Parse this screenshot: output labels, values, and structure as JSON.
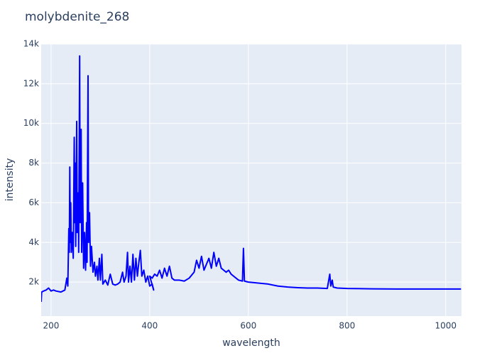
{
  "chart_data": {
    "type": "line",
    "title": "molybdenite_268",
    "x_label": "wavelength",
    "y_label": "intensity",
    "x": [
      180,
      181,
      185,
      190,
      195,
      200,
      205,
      210,
      220,
      228,
      232,
      234,
      236,
      237,
      238,
      239,
      240,
      241,
      243,
      245,
      247,
      248,
      249,
      250,
      252,
      253,
      255,
      256,
      258,
      259,
      261,
      262,
      264,
      266,
      268,
      270,
      272,
      273,
      275,
      276,
      278,
      280,
      282,
      285,
      288,
      290,
      293,
      295,
      298,
      300,
      303,
      305,
      310,
      315,
      320,
      325,
      330,
      335,
      340,
      345,
      348,
      352,
      355,
      357,
      360,
      363,
      366,
      369,
      372,
      375,
      378,
      381,
      384,
      388,
      392,
      396,
      400,
      405,
      408,
      400,
      405,
      410,
      415,
      420,
      425,
      430,
      435,
      440,
      445,
      450,
      460,
      470,
      480,
      490,
      495,
      500,
      505,
      510,
      515,
      520,
      525,
      530,
      535,
      540,
      545,
      550,
      555,
      560,
      565,
      570,
      580,
      588,
      590,
      592,
      600,
      620,
      640,
      660,
      680,
      700,
      720,
      740,
      760,
      765,
      767,
      770,
      772,
      780,
      800,
      850,
      900,
      950,
      1000,
      1031
    ],
    "values": [
      1000,
      1500,
      1550,
      1600,
      1700,
      1550,
      1600,
      1550,
      1500,
      1600,
      2200,
      1800,
      4700,
      3500,
      7800,
      4000,
      6000,
      3500,
      4500,
      3200,
      9300,
      5000,
      8000,
      3800,
      10100,
      4500,
      6500,
      3500,
      13400,
      5000,
      9700,
      3500,
      7000,
      2700,
      4500,
      2600,
      5000,
      3000,
      12400,
      4000,
      5500,
      2800,
      3800,
      2500,
      3000,
      2300,
      2800,
      2100,
      3200,
      2100,
      3400,
      1900,
      2100,
      1850,
      2400,
      1900,
      1850,
      1900,
      2000,
      2500,
      2000,
      2300,
      3500,
      2000,
      2800,
      2000,
      3400,
      2100,
      3200,
      2300,
      3000,
      3600,
      2300,
      2600,
      2000,
      2300,
      1800,
      1900,
      1600,
      2300,
      2200,
      2400,
      2300,
      2600,
      2200,
      2700,
      2300,
      2800,
      2200,
      2100,
      2100,
      2050,
      2200,
      2500,
      3100,
      2700,
      3300,
      2600,
      2900,
      3200,
      2700,
      3500,
      2800,
      3200,
      2700,
      2600,
      2500,
      2600,
      2400,
      2300,
      2100,
      2050,
      3700,
      2050,
      2000,
      1950,
      1900,
      1800,
      1750,
      1720,
      1700,
      1700,
      1680,
      2400,
      1800,
      2100,
      1750,
      1700,
      1680,
      1660,
      1650,
      1650,
      1650,
      1650
    ],
    "color": "#0000ff",
    "xlim": [
      180,
      1032
    ],
    "xticks": [
      200,
      400,
      600,
      800,
      1000
    ],
    "ylim": [
      286,
      14000
    ],
    "yticks": [
      {
        "value": 2000,
        "label": "2k"
      },
      {
        "value": 4000,
        "label": "4k"
      },
      {
        "value": 6000,
        "label": "6k"
      },
      {
        "value": 8000,
        "label": "8k"
      },
      {
        "value": 10000,
        "label": "10k"
      },
      {
        "value": 12000,
        "label": "12k"
      },
      {
        "value": 14000,
        "label": "14k"
      }
    ],
    "grid": true
  }
}
